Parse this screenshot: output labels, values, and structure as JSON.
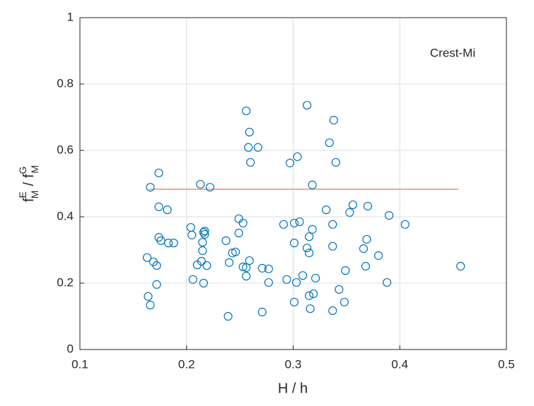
{
  "chart_data": {
    "type": "scatter",
    "annotation": "Crest-Mi",
    "xlabel": "H / h",
    "ylabel": {
      "numerator": {
        "base": "f",
        "sup": "E",
        "sub": "M"
      },
      "separator": "/",
      "denominator": {
        "base": "f",
        "sup": "G",
        "sub": "M"
      }
    },
    "xlim": [
      0.1,
      0.5
    ],
    "ylim": [
      0,
      1
    ],
    "xticks": [
      0.1,
      0.2,
      0.3,
      0.4,
      0.5
    ],
    "yticks": [
      0,
      0.2,
      0.4,
      0.6,
      0.8,
      1
    ],
    "grid": true,
    "series": [
      {
        "color": "#0072bd",
        "x": [
          0.166,
          0.174,
          0.174,
          0.182,
          0.174,
          0.176,
          0.183,
          0.188,
          0.163,
          0.169,
          0.172,
          0.172,
          0.164,
          0.166,
          0.204,
          0.205,
          0.213,
          0.222,
          0.216,
          0.217,
          0.217,
          0.215,
          0.215,
          0.21,
          0.214,
          0.219,
          0.206,
          0.216,
          0.237,
          0.24,
          0.243,
          0.246,
          0.239,
          0.249,
          0.249,
          0.253,
          0.253,
          0.256,
          0.256,
          0.259,
          0.256,
          0.259,
          0.258,
          0.26,
          0.267,
          0.271,
          0.277,
          0.277,
          0.271,
          0.291,
          0.297,
          0.304,
          0.301,
          0.306,
          0.301,
          0.294,
          0.303,
          0.301,
          0.309,
          0.313,
          0.318,
          0.315,
          0.318,
          0.313,
          0.315,
          0.315,
          0.319,
          0.321,
          0.316,
          0.331,
          0.334,
          0.338,
          0.34,
          0.337,
          0.337,
          0.337,
          0.343,
          0.349,
          0.348,
          0.353,
          0.356,
          0.37,
          0.369,
          0.366,
          0.368,
          0.38,
          0.39,
          0.388,
          0.405,
          0.457
        ],
        "values": [
          0.489,
          0.532,
          0.43,
          0.421,
          0.338,
          0.328,
          0.321,
          0.321,
          0.277,
          0.264,
          0.253,
          0.196,
          0.16,
          0.134,
          0.368,
          0.345,
          0.498,
          0.489,
          0.353,
          0.357,
          0.347,
          0.323,
          0.298,
          0.255,
          0.266,
          0.253,
          0.211,
          0.2,
          0.328,
          0.262,
          0.291,
          0.294,
          0.1,
          0.394,
          0.351,
          0.381,
          0.249,
          0.247,
          0.221,
          0.268,
          0.719,
          0.655,
          0.609,
          0.564,
          0.609,
          0.245,
          0.243,
          0.202,
          0.113,
          0.377,
          0.562,
          0.581,
          0.381,
          0.385,
          0.321,
          0.211,
          0.202,
          0.143,
          0.223,
          0.736,
          0.496,
          0.34,
          0.362,
          0.306,
          0.291,
          0.162,
          0.168,
          0.215,
          0.123,
          0.421,
          0.623,
          0.691,
          0.564,
          0.377,
          0.311,
          0.117,
          0.181,
          0.238,
          0.143,
          0.413,
          0.436,
          0.432,
          0.332,
          0.304,
          0.251,
          0.283,
          0.404,
          0.202,
          0.377,
          0.251
        ]
      }
    ],
    "reference_line": {
      "color": "#e8906a",
      "x": [
        0.165,
        0.455
      ],
      "values": [
        0.483,
        0.483
      ]
    }
  }
}
